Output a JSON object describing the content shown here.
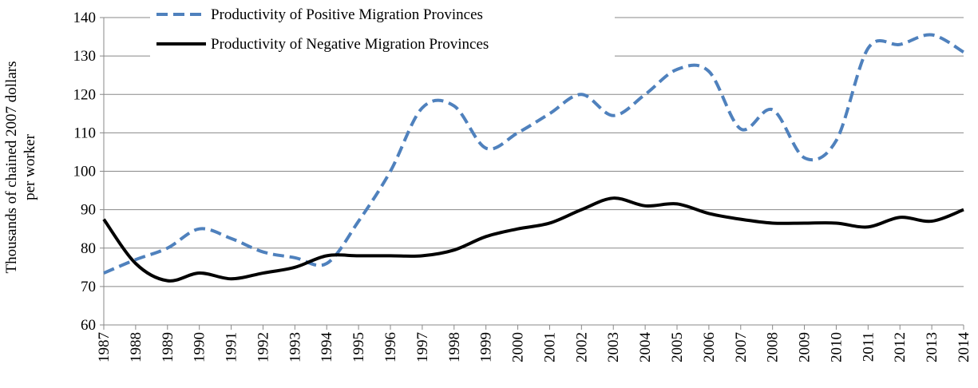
{
  "chart_data": {
    "type": "line",
    "y_label": [
      "Thousands of chained 2007 dollars",
      "per worker"
    ],
    "x": [
      1987,
      1988,
      1989,
      1990,
      1991,
      1992,
      1993,
      1994,
      1995,
      1996,
      1997,
      1998,
      1999,
      2000,
      2001,
      2002,
      2003,
      2004,
      2005,
      2006,
      2007,
      2008,
      2009,
      2010,
      2011,
      2012,
      2013,
      2014
    ],
    "xlim": [
      1987,
      2014
    ],
    "series": [
      {
        "name": "Productivity of Positive Migration Provinces",
        "color": "#4f81bd",
        "dashed": true,
        "values": [
          73.5,
          77,
          80,
          85,
          82.5,
          79,
          77.5,
          76,
          87,
          100,
          116.5,
          117,
          106,
          110,
          115,
          120,
          114.5,
          120,
          126.5,
          126,
          111,
          116,
          103.5,
          108,
          132,
          133,
          135.5,
          131
        ]
      },
      {
        "name": "Productivity of Negative Migration Provinces",
        "color": "#000000",
        "dashed": false,
        "values": [
          87.5,
          76,
          71.5,
          73.5,
          72,
          73.5,
          75,
          78,
          78,
          78,
          78,
          79.5,
          83,
          85,
          86.5,
          90,
          93,
          91,
          91.5,
          89,
          87.5,
          86.5,
          86.5,
          86.5,
          85.5,
          88,
          87,
          90
        ]
      }
    ],
    "ylim": [
      60,
      140
    ],
    "yticks": [
      60,
      70,
      80,
      90,
      100,
      110,
      120,
      130,
      140
    ],
    "grid": true,
    "smooth": true,
    "legend": "upper-left"
  }
}
